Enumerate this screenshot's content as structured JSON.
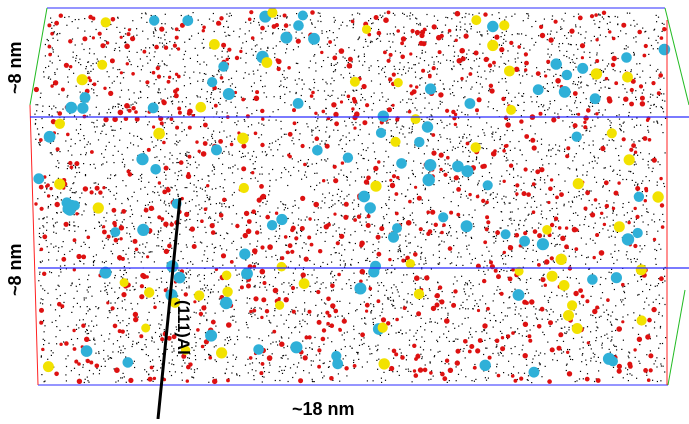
{
  "labels": {
    "top_thickness": "~8 nm",
    "mid_thickness": "~8 nm",
    "length": "~18 nm",
    "plane": "(111)Al"
  },
  "colors": {
    "box_top": "#2b2bff",
    "box_side_left": "#22bb22",
    "box_side_right": "#ff2222",
    "matrix_atoms": "#000000",
    "red_atoms": "#dd1111",
    "cyan_atoms": "#2fb0d8",
    "yellow_atoms": "#f2e200",
    "plane_line": "#000000"
  }
}
